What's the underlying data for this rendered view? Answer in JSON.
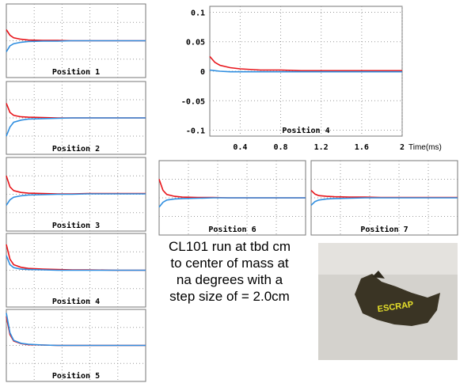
{
  "chart_data": [
    {
      "type": "line",
      "title": "Position 1",
      "xlim": [
        0.1,
        2
      ],
      "ylim": [
        -0.1,
        0.1
      ],
      "grid": true,
      "x": [
        0.1,
        0.15,
        0.2,
        0.3,
        0.4,
        0.6,
        0.8,
        1.0,
        1.2,
        1.6,
        2.0
      ],
      "series": [
        {
          "color": "#e8141a",
          "values": [
            0.03,
            0.015,
            0.008,
            0.004,
            0.002,
            0.001,
            0.001,
            0,
            0,
            0,
            0
          ]
        },
        {
          "color": "#2f8ee0",
          "values": [
            -0.03,
            -0.014,
            -0.008,
            -0.004,
            -0.002,
            -0.001,
            -0.001,
            0,
            0,
            0,
            0
          ]
        }
      ]
    },
    {
      "type": "line",
      "title": "Position 2",
      "xlim": [
        0.1,
        2
      ],
      "ylim": [
        -0.1,
        0.1
      ],
      "grid": true,
      "x": [
        0.1,
        0.15,
        0.2,
        0.3,
        0.4,
        0.6,
        0.8,
        1.0,
        1.2,
        1.6,
        2.0
      ],
      "series": [
        {
          "color": "#e8141a",
          "values": [
            0.04,
            0.015,
            0.007,
            0.003,
            0.002,
            0.001,
            0,
            0,
            0,
            0,
            0
          ]
        },
        {
          "color": "#2f8ee0",
          "values": [
            -0.05,
            -0.025,
            -0.012,
            -0.006,
            -0.003,
            -0.002,
            -0.001,
            0,
            0,
            0,
            0
          ]
        }
      ]
    },
    {
      "type": "line",
      "title": "Position 3",
      "xlim": [
        0.1,
        2
      ],
      "ylim": [
        -0.1,
        0.1
      ],
      "grid": true,
      "x": [
        0.1,
        0.15,
        0.2,
        0.3,
        0.4,
        0.6,
        0.8,
        1.0,
        1.2,
        1.6,
        2.0
      ],
      "series": [
        {
          "color": "#e8141a",
          "values": [
            0.05,
            0.02,
            0.01,
            0.005,
            0.003,
            0.002,
            0.001,
            0.001,
            0.002,
            0.002,
            0.002
          ]
        },
        {
          "color": "#2f8ee0",
          "values": [
            -0.03,
            -0.015,
            -0.008,
            -0.004,
            -0.002,
            -0.001,
            0,
            0,
            0.001,
            0.001,
            0.001
          ]
        }
      ]
    },
    {
      "type": "line",
      "title": "Position 4",
      "xlim": [
        0.1,
        2
      ],
      "ylim": [
        -0.1,
        0.1
      ],
      "grid": true,
      "x": [
        0.1,
        0.15,
        0.2,
        0.3,
        0.4,
        0.6,
        0.8,
        1.0,
        1.2,
        1.6,
        2.0
      ],
      "series": [
        {
          "color": "#e8141a",
          "values": [
            0.07,
            0.03,
            0.015,
            0.008,
            0.005,
            0.003,
            0.002,
            0.001,
            0.001,
            0,
            0
          ]
        },
        {
          "color": "#2f8ee0",
          "values": [
            0.04,
            0.015,
            0.007,
            0.003,
            0.002,
            0.001,
            0,
            0,
            0,
            0,
            0
          ]
        }
      ]
    },
    {
      "type": "line",
      "title": "Position 5",
      "xlim": [
        0.1,
        2
      ],
      "ylim": [
        -0.1,
        0.1
      ],
      "grid": true,
      "x": [
        0.1,
        0.15,
        0.2,
        0.3,
        0.4,
        0.6,
        0.8,
        1.0,
        1.2,
        1.6,
        2.0
      ],
      "series": [
        {
          "color": "#e8141a",
          "values": [
            0.08,
            0.03,
            0.012,
            0.005,
            0.002,
            0.001,
            0,
            0,
            0,
            0,
            0
          ]
        },
        {
          "color": "#2f8ee0",
          "values": [
            0.09,
            0.035,
            0.014,
            0.006,
            0.003,
            0.001,
            0,
            0,
            0,
            0,
            0
          ]
        }
      ]
    },
    {
      "type": "line",
      "title": "Position 4",
      "xlim": [
        0.1,
        2
      ],
      "ylim": [
        -0.11,
        0.11
      ],
      "grid": true,
      "x_label": "Time(ms)",
      "xticks": [
        0.4,
        0.8,
        1.2,
        1.6,
        2
      ],
      "yticks": [
        {
          "value": -0.1,
          "label": "-0.1"
        },
        {
          "value": -0.05,
          "label": "-0.05"
        },
        0,
        0.05,
        0.1
      ],
      "x": [
        0.1,
        0.15,
        0.2,
        0.3,
        0.4,
        0.6,
        0.8,
        1.0,
        1.2,
        1.6,
        2.0
      ],
      "series": [
        {
          "color": "#e8141a",
          "values": [
            0.025,
            0.015,
            0.01,
            0.006,
            0.004,
            0.002,
            0.002,
            0.001,
            0.001,
            0.001,
            0.001
          ]
        },
        {
          "color": "#2f8ee0",
          "values": [
            0.002,
            0.001,
            0,
            -0.001,
            -0.001,
            -0.001,
            -0.001,
            -0.001,
            -0.001,
            -0.001,
            -0.001
          ]
        }
      ]
    },
    {
      "type": "line",
      "title": "Position 6",
      "xlim": [
        0.1,
        2
      ],
      "ylim": [
        -0.1,
        0.1
      ],
      "grid": true,
      "x": [
        0.1,
        0.15,
        0.2,
        0.3,
        0.4,
        0.6,
        0.8,
        1.0,
        1.2,
        1.6,
        2.0
      ],
      "series": [
        {
          "color": "#e8141a",
          "values": [
            0.05,
            0.02,
            0.009,
            0.004,
            0.002,
            0.001,
            0.001,
            0,
            0,
            0,
            0
          ]
        },
        {
          "color": "#2f8ee0",
          "values": [
            -0.025,
            -0.012,
            -0.006,
            -0.003,
            -0.002,
            -0.001,
            0,
            0,
            0,
            0,
            0
          ]
        }
      ]
    },
    {
      "type": "line",
      "title": "Position 7",
      "xlim": [
        0.1,
        2
      ],
      "ylim": [
        -0.1,
        0.1
      ],
      "grid": true,
      "x": [
        0.1,
        0.15,
        0.2,
        0.3,
        0.4,
        0.6,
        0.8,
        1.0,
        1.2,
        1.6,
        2.0
      ],
      "series": [
        {
          "color": "#e8141a",
          "values": [
            0.02,
            0.01,
            0.006,
            0.004,
            0.003,
            0.002,
            0.002,
            0.001,
            0.001,
            0.001,
            0.001
          ]
        },
        {
          "color": "#2f8ee0",
          "values": [
            -0.02,
            -0.01,
            -0.006,
            -0.003,
            -0.002,
            -0.001,
            0,
            0,
            0,
            0,
            0
          ]
        }
      ]
    }
  ],
  "caption": {
    "lines": [
      "CL101 run at tbd cm",
      "to center of mass at",
      "na degrees with a",
      "step size of = 2.0cm"
    ]
  },
  "photo": {
    "text": "ESCRAP"
  }
}
